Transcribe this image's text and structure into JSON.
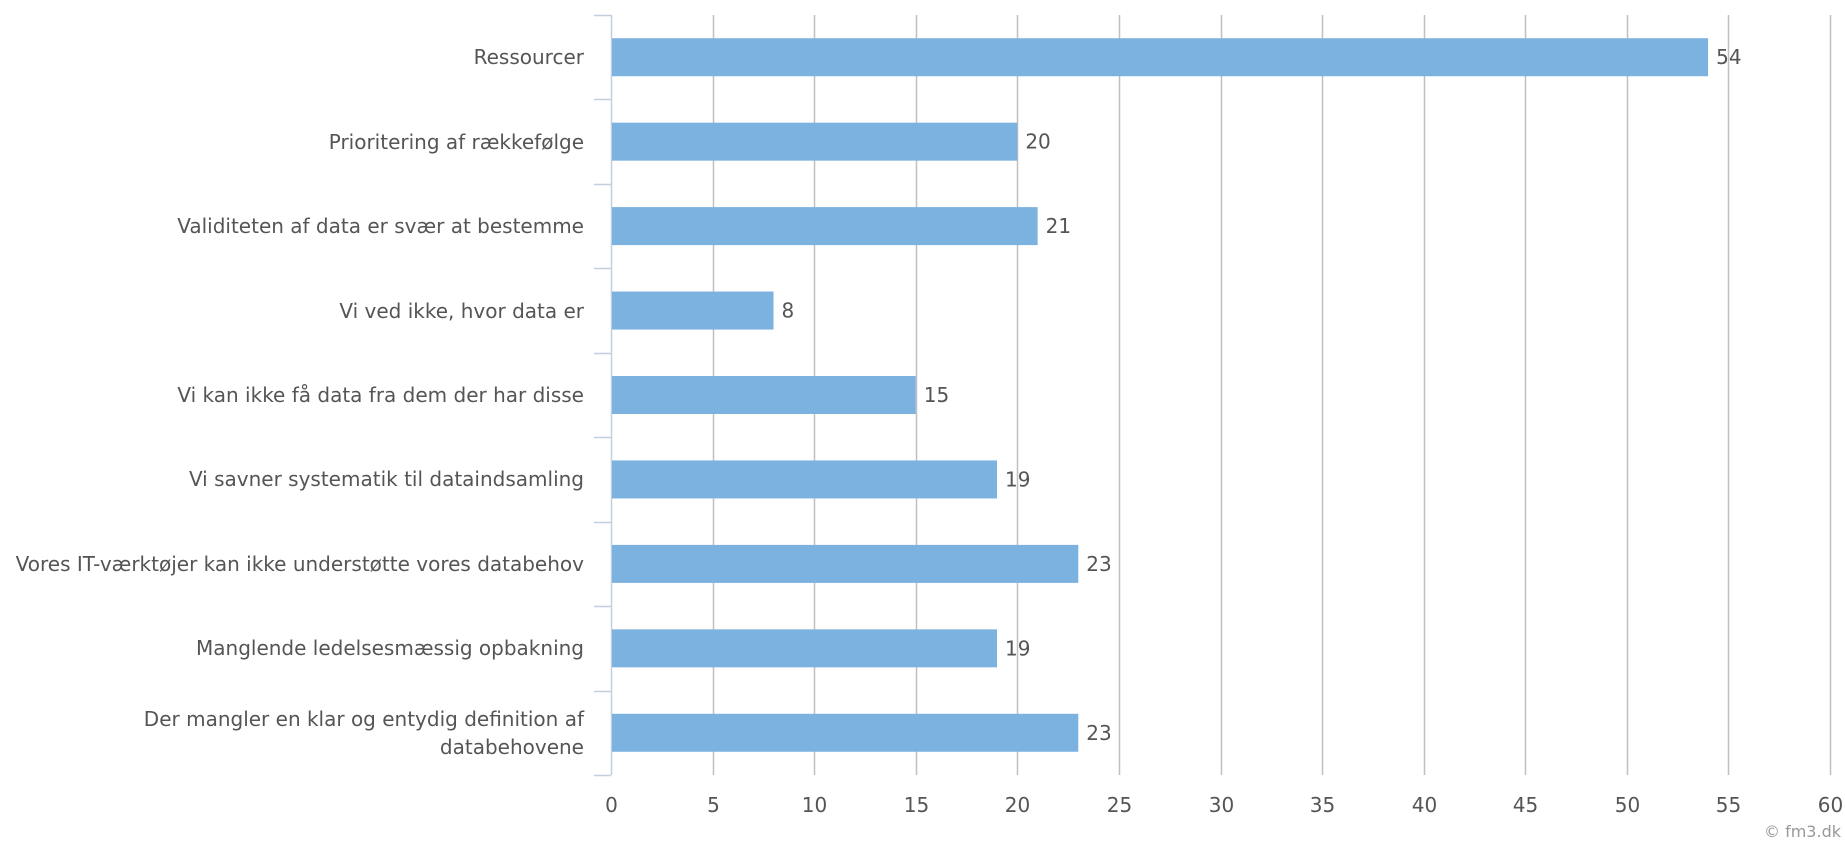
{
  "chart_data": {
    "type": "bar",
    "orientation": "horizontal",
    "categories": [
      "Ressourcer",
      "Prioritering af rækkefølge",
      "Validiteten af data er svær at bestemme",
      "Vi ved ikke, hvor data er",
      "Vi kan ikke få data fra dem der har disse",
      "Vi savner systematik til dataindsamling",
      "Vores IT-værktøjer kan ikke understøtte vores databehov",
      "Manglende ledelsesmæssig opbakning",
      "Der mangler en klar og entydig definition af\ndatabehovene"
    ],
    "values": [
      54,
      20,
      21,
      8,
      15,
      19,
      23,
      19,
      23
    ],
    "xlim": [
      0,
      60
    ],
    "xticks": [
      0,
      5,
      10,
      15,
      20,
      25,
      30,
      35,
      40,
      45,
      50,
      55,
      60
    ],
    "grid": true,
    "legend": "none",
    "title": "",
    "xlabel": "",
    "ylabel": "",
    "bar_color": "#7cb2e0",
    "grid_color": "#c0c0c0",
    "axis_color": "#c0d0e0",
    "label_color": "#555555"
  },
  "credit": "© fm3.dk"
}
